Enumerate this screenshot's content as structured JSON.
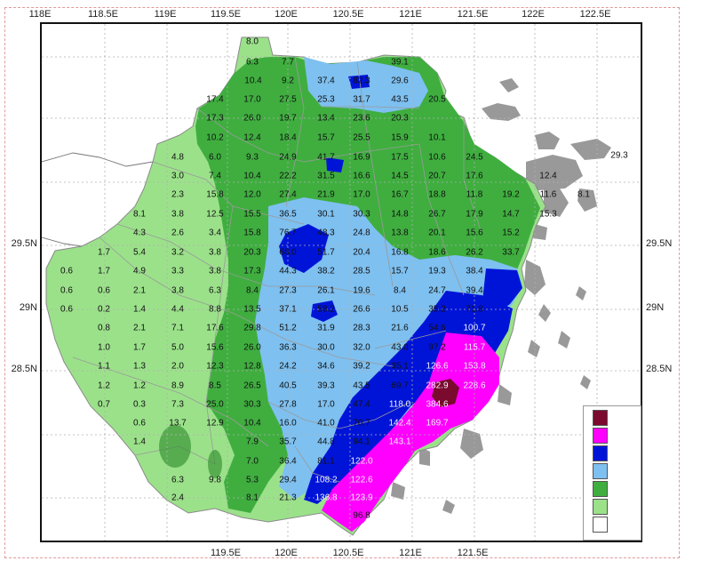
{
  "map": {
    "lon_ticks_top": [
      "118E",
      "118.5E",
      "119E",
      "119.5E",
      "120E",
      "120.5E",
      "121E",
      "121.5E",
      "122E",
      "122.5E"
    ],
    "lon_ticks_bottom": [
      "119.5E",
      "120E",
      "120.5E",
      "121E",
      "121.5E"
    ],
    "lat_ticks_left": [
      "29.5N",
      "29N",
      "28.5N"
    ],
    "lat_ticks_right": [
      "29.5N",
      "29N",
      "28.5N"
    ],
    "corner_label": "29.3"
  },
  "colors": {
    "frame": "#111111",
    "outer_border": "#e29a9a",
    "background": "#ffffff",
    "grid": "#b0b0b0",
    "boundary": "#9a9a9a",
    "island": "#8f8f8f"
  },
  "legend": {
    "colors": [
      "#7a0a2e",
      "#ff00ff",
      "#0014d8",
      "#7ec0f0",
      "#3fae3f",
      "#9be18a",
      "#ffffff"
    ]
  },
  "rain": {
    "values": [
      "8.0",
      "6.3",
      "7.7",
      "10.4",
      "9.2",
      "37.4",
      "82.3",
      "39.1",
      "29.6",
      "17.4",
      "17.0",
      "27.5",
      "25.3",
      "31.7",
      "43.5",
      "20.5",
      "17.3",
      "26.0",
      "19.7",
      "13.4",
      "23.6",
      "20.3",
      "10.2",
      "12.4",
      "18.4",
      "15.7",
      "25.5",
      "15.9",
      "10.1",
      "4.8",
      "6.0",
      "9.3",
      "24.9",
      "41.7",
      "16.9",
      "17.5",
      "10.6",
      "24.5",
      "3.0",
      "7.4",
      "10.4",
      "22.2",
      "31.5",
      "16.6",
      "14.5",
      "20.7",
      "17.6",
      "12.4",
      "2.3",
      "15.8",
      "12.0",
      "27.4",
      "21.9",
      "17.0",
      "16.7",
      "18.8",
      "11.8",
      "19.2",
      "11.6",
      "8.1",
      "8.1",
      "3.8",
      "12.5",
      "15.5",
      "36.5",
      "30.1",
      "30.3",
      "14.8",
      "26.7",
      "17.9",
      "14.7",
      "15.3",
      "4.3",
      "2.6",
      "3.4",
      "15.8",
      "76.7",
      "48.3",
      "24.8",
      "13.8",
      "20.1",
      "15.6",
      "15.2",
      "1.7",
      "5.4",
      "3.2",
      "3.8",
      "20.3",
      "68.0",
      "51.7",
      "20.4",
      "16.8",
      "18.6",
      "26.2",
      "33.7",
      "0.6",
      "1.7",
      "4.9",
      "3.3",
      "3.8",
      "17.3",
      "44.3",
      "38.2",
      "28.5",
      "15.7",
      "19.3",
      "38.4",
      "0.6",
      "0.6",
      "2.1",
      "3.8",
      "6.3",
      "8.4",
      "27.3",
      "26.1",
      "19.6",
      "8.4",
      "24.7",
      "39.4",
      "0.6",
      "0.2",
      "1.4",
      "4.4",
      "8.8",
      "13.5",
      "37.1",
      "58.2",
      "26.6",
      "10.5",
      "35.2",
      "71.8",
      "0.8",
      "2.1",
      "7.1",
      "17.6",
      "29.8",
      "51.2",
      "31.9",
      "28.3",
      "21.6",
      "54.6",
      "100.7",
      "1.0",
      "1.7",
      "5.0",
      "15.6",
      "26.0",
      "36.3",
      "30.0",
      "32.0",
      "43.0",
      "97.2",
      "115.7",
      "1.1",
      "1.3",
      "2.0",
      "12.3",
      "12.8",
      "24.2",
      "34.6",
      "39.2",
      "35.1",
      "126.6",
      "153.8",
      "1.2",
      "1.2",
      "8.9",
      "8.5",
      "26.5",
      "40.5",
      "39.3",
      "43.5",
      "69.7",
      "282.9",
      "228.6",
      "0.7",
      "0.3",
      "7.3",
      "25.0",
      "30.3",
      "27.8",
      "17.0",
      "47.4",
      "118.0",
      "384.6",
      "0.6",
      "13.7",
      "12.9",
      "10.4",
      "16.0",
      "41.0",
      "70.7",
      "142.4",
      "169.7",
      "1.4",
      "7.9",
      "35.7",
      "44.8",
      "94.1",
      "143.1",
      "7.0",
      "36.4",
      "81.1",
      "122.0",
      "6.3",
      "9.8",
      "5.3",
      "29.4",
      "108.2",
      "122.6",
      "2.4",
      "8.1",
      "21.3",
      "136.8",
      "123.9",
      "96.8"
    ]
  }
}
